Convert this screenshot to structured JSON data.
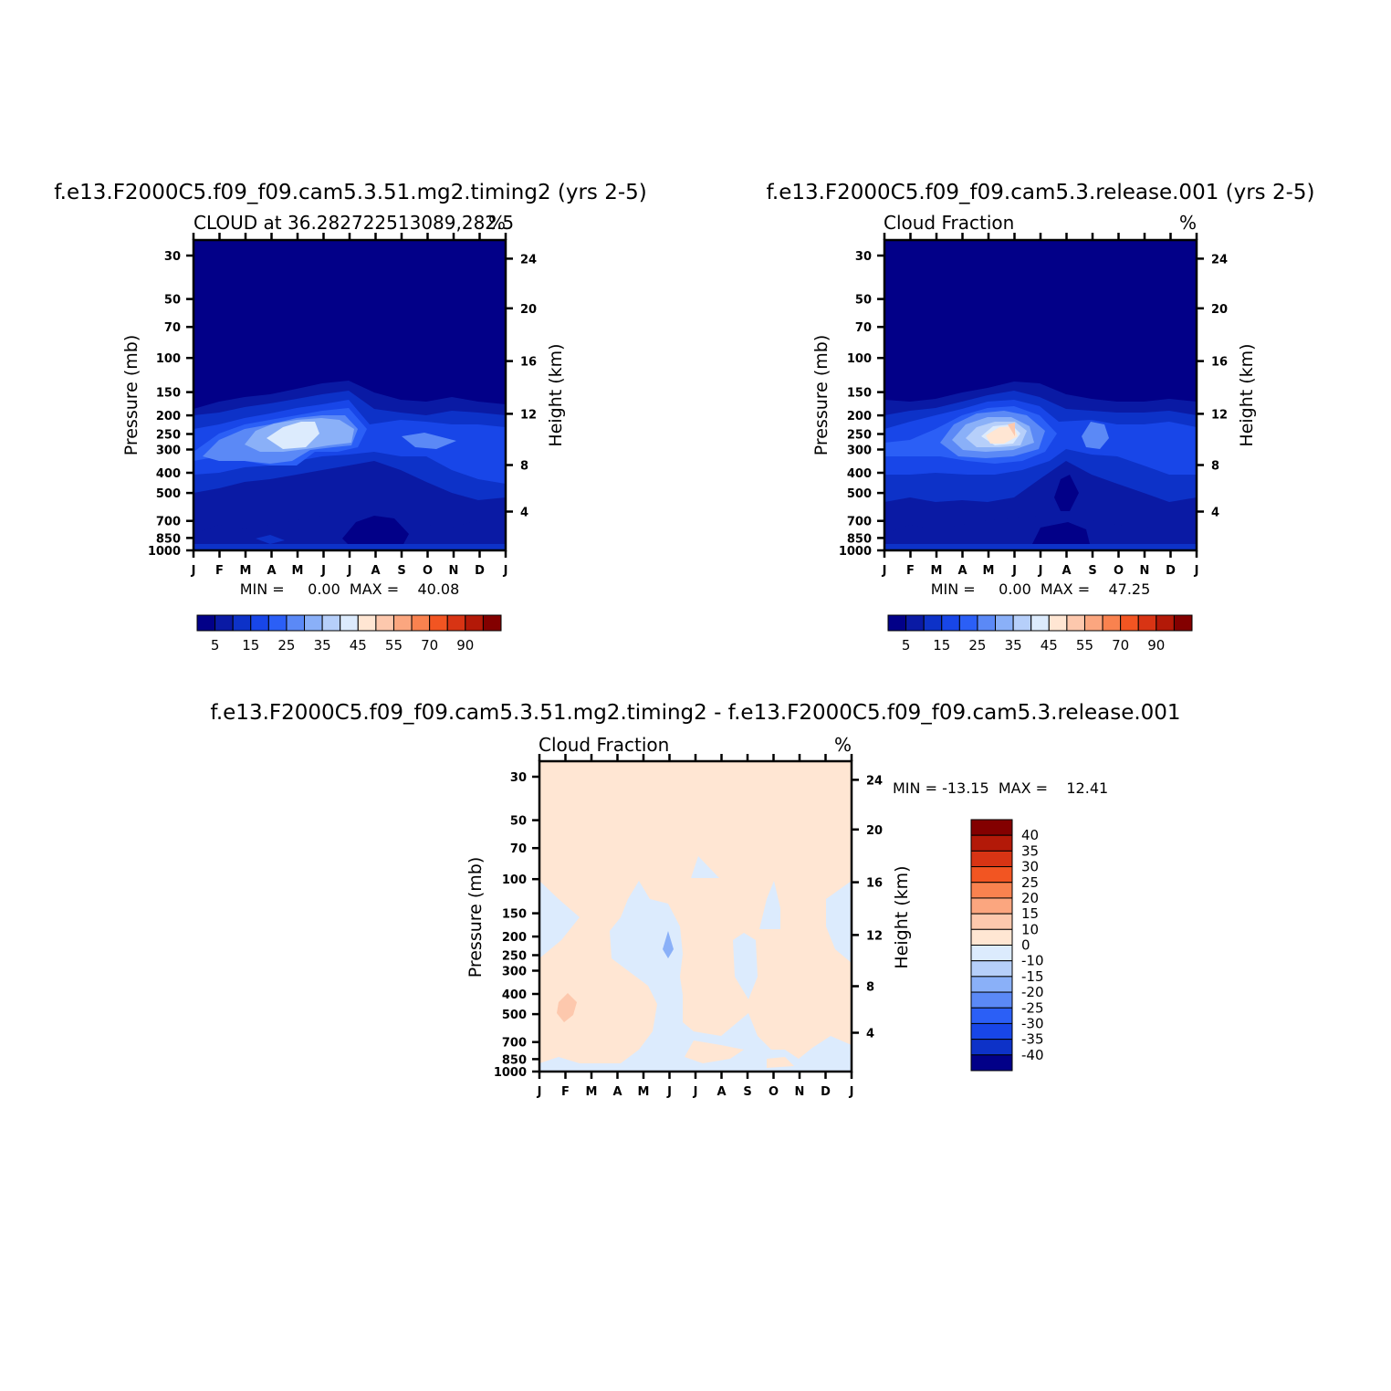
{
  "chart_data": [
    {
      "type": "heatmap",
      "title": "f.e13.F2000C5.f09_f09.cam5.3.51.mg2.timing2 (yrs 2-5)",
      "subtitle_left": "CLOUD at 36.282722513089,282.5",
      "subtitle_right": "%",
      "ylabel": "Pressure (mb)",
      "ylabel_right": "Height (km)",
      "x_ticks": [
        "J",
        "F",
        "M",
        "A",
        "M",
        "J",
        "J",
        "A",
        "S",
        "O",
        "N",
        "D",
        "J"
      ],
      "y_ticks": [
        "30",
        "50",
        "70",
        "100",
        "150",
        "200",
        "250",
        "300",
        "400",
        "500",
        "700",
        "850",
        "1000"
      ],
      "y_ticks_right": [
        "24",
        "20",
        "16",
        "12",
        "8",
        "4"
      ],
      "min_label": "MIN =",
      "min_value": "0.00",
      "max_label": "MAX =",
      "max_value": "40.08",
      "stats": "MIN =     0.00  MAX =    40.08",
      "colorbar_labels": [
        "5",
        "15",
        "25",
        "35",
        "45",
        "55",
        "70",
        "90"
      ],
      "cloud_layers": [
        {
          "level": 0,
          "values_top_mb": [
            200,
            190,
            180,
            170,
            160,
            150,
            145,
            160,
            170,
            160,
            150,
            150,
            150
          ]
        },
        {
          "level": 1,
          "values_top_mb": [
            210,
            205,
            195,
            185,
            175,
            165,
            160,
            175,
            190,
            180,
            170,
            170,
            175
          ]
        },
        {
          "level": 2,
          "values_top_mb": [
            230,
            225,
            215,
            210,
            200,
            185,
            180,
            195,
            210,
            205,
            200,
            205,
            210
          ]
        },
        {
          "level": 3,
          "values_top_mb": [
            290,
            260,
            240,
            225,
            215,
            200,
            200,
            230,
            260,
            250,
            240,
            245,
            260
          ]
        },
        {
          "level": 4,
          "values_top_mb": [
            null,
            null,
            260,
            245,
            230,
            215,
            240,
            null,
            null,
            260,
            270,
            null,
            null
          ]
        },
        {
          "level": 5,
          "values_top_mb": [
            null,
            null,
            null,
            260,
            245,
            235,
            null,
            null,
            null,
            null,
            null,
            null,
            null
          ]
        }
      ]
    },
    {
      "type": "heatmap",
      "title": "f.e13.F2000C5.f09_f09.cam5.3.release.001 (yrs 2-5)",
      "subtitle_left": "Cloud Fraction",
      "subtitle_right": "%",
      "ylabel": "Pressure (mb)",
      "ylabel_right": "Height (km)",
      "x_ticks": [
        "J",
        "F",
        "M",
        "A",
        "M",
        "J",
        "J",
        "A",
        "S",
        "O",
        "N",
        "D",
        "J"
      ],
      "y_ticks": [
        "30",
        "50",
        "70",
        "100",
        "150",
        "200",
        "250",
        "300",
        "400",
        "500",
        "700",
        "850",
        "1000"
      ],
      "y_ticks_right": [
        "24",
        "20",
        "16",
        "12",
        "8",
        "4"
      ],
      "min_label": "MIN =",
      "min_value": "0.00",
      "max_label": "MAX =",
      "max_value": "47.25",
      "stats": "MIN =     0.00  MAX =    47.25",
      "colorbar_labels": [
        "5",
        "15",
        "25",
        "35",
        "45",
        "55",
        "70",
        "90"
      ]
    },
    {
      "type": "heatmap",
      "title": "f.e13.F2000C5.f09_f09.cam5.3.51.mg2.timing2 - f.e13.F2000C5.f09_f09.cam5.3.release.001",
      "subtitle_left": "Cloud Fraction",
      "subtitle_right": "%",
      "ylabel": "Pressure (mb)",
      "ylabel_right": "Height (km)",
      "x_ticks": [
        "J",
        "F",
        "M",
        "A",
        "M",
        "J",
        "J",
        "A",
        "S",
        "O",
        "N",
        "D",
        "J"
      ],
      "y_ticks": [
        "30",
        "50",
        "70",
        "100",
        "150",
        "200",
        "250",
        "300",
        "400",
        "500",
        "700",
        "850",
        "1000"
      ],
      "y_ticks_right": [
        "24",
        "20",
        "16",
        "12",
        "8",
        "4"
      ],
      "stats": "MIN = -13.15  MAX =    12.41",
      "min_value": "-13.15",
      "max_value": "12.41",
      "colorbar_labels": [
        "40",
        "35",
        "30",
        "25",
        "20",
        "15",
        "10",
        "0",
        "-10",
        "-15",
        "-20",
        "-25",
        "-30",
        "-35",
        "-40"
      ]
    }
  ],
  "colors": {
    "seq": [
      "#020088",
      "#0a1aa4",
      "#0d32c8",
      "#1846e8",
      "#2b5ff6",
      "#5b89f6",
      "#8ab0f8",
      "#b6cffa",
      "#dcebfd",
      "#ffe6d3",
      "#fdc8ad",
      "#fba67f",
      "#f9824f",
      "#f25522",
      "#d83414",
      "#b31908",
      "#830000"
    ],
    "div": [
      "#830000",
      "#b31908",
      "#d83414",
      "#f25522",
      "#f9824f",
      "#fba67f",
      "#fdc8ad",
      "#ffe6d3",
      "#dcebfd",
      "#b6cffa",
      "#8ab0f8",
      "#5b89f6",
      "#2b5ff6",
      "#1846e8",
      "#0d32c8",
      "#020088"
    ]
  }
}
